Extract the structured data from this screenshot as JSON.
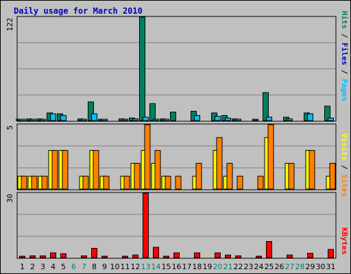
{
  "title": "Daily usage for March 2010",
  "colors": {
    "hits": "#008060",
    "files": "#00c0ff",
    "pages": "#00c0ff",
    "visits": "#ffff00",
    "sites": "#ff8000",
    "kbytes": "#ff0000",
    "weekday": "#000000",
    "weekend": "#00806b",
    "background": "#c0c0c0",
    "title": "#0000c0"
  },
  "side_labels": {
    "top": [
      {
        "text": "Hits",
        "color": "#008060"
      },
      {
        "text": " / ",
        "color": "#000000"
      },
      {
        "text": "Files",
        "color": "#0000c0"
      },
      {
        "text": " / ",
        "color": "#000000"
      },
      {
        "text": "Pages",
        "color": "#00c0ff"
      }
    ],
    "middle": [
      {
        "text": "Visits",
        "color": "#ffff00"
      },
      {
        "text": " / ",
        "color": "#000000"
      },
      {
        "text": "Sites",
        "color": "#ff8000"
      }
    ],
    "bottom": [
      {
        "text": "KBytes",
        "color": "#ff0000"
      }
    ]
  },
  "chart_data": [
    {
      "type": "bar",
      "panel": "hits-files-pages",
      "ymax_label": "122",
      "ylim": [
        0,
        122
      ],
      "categories": [
        "1",
        "2",
        "3",
        "4",
        "5",
        "6",
        "7",
        "8",
        "9",
        "10",
        "11",
        "12",
        "13",
        "14",
        "15",
        "16",
        "17",
        "18",
        "19",
        "20",
        "21",
        "22",
        "23",
        "24",
        "25",
        "26",
        "27",
        "28",
        "29",
        "30",
        "31"
      ],
      "series": [
        {
          "name": "Hits",
          "color": "#008060",
          "values": [
            1,
            2,
            2,
            9,
            8,
            0,
            2,
            22,
            1,
            0,
            2,
            3,
            122,
            20,
            2,
            10,
            0,
            11,
            0,
            9,
            6,
            2,
            0,
            1,
            33,
            0,
            4,
            0,
            9,
            0,
            17
          ]
        },
        {
          "name": "Files",
          "color": "#00c0ff",
          "values": [
            1,
            1,
            1,
            8,
            6,
            0,
            1,
            8,
            1,
            0,
            1,
            2,
            4,
            1,
            1,
            0,
            0,
            6,
            0,
            5,
            3,
            1,
            0,
            0,
            4,
            0,
            2,
            0,
            8,
            0,
            3
          ]
        },
        {
          "name": "Pages",
          "color": "#00c0ff",
          "values": [
            0,
            0,
            0,
            0,
            0,
            0,
            0,
            0,
            0,
            0,
            0,
            0,
            0,
            0,
            0,
            0,
            0,
            0,
            0,
            0,
            0,
            0,
            0,
            0,
            0,
            0,
            0,
            0,
            0,
            0,
            0
          ]
        }
      ]
    },
    {
      "type": "bar",
      "panel": "visits-sites",
      "ymax_label": "5",
      "ylim": [
        0,
        5
      ],
      "categories": [
        "1",
        "2",
        "3",
        "4",
        "5",
        "6",
        "7",
        "8",
        "9",
        "10",
        "11",
        "12",
        "13",
        "14",
        "15",
        "16",
        "17",
        "18",
        "19",
        "20",
        "21",
        "22",
        "23",
        "24",
        "25",
        "26",
        "27",
        "28",
        "29",
        "30",
        "31"
      ],
      "series": [
        {
          "name": "Visits",
          "color": "#ffff00",
          "values": [
            1,
            1,
            1,
            3,
            3,
            0,
            1,
            3,
            1,
            0,
            1,
            2,
            3,
            2,
            1,
            0,
            0,
            1,
            0,
            3,
            1,
            0,
            0,
            0,
            4,
            0,
            2,
            0,
            3,
            0,
            1
          ]
        },
        {
          "name": "Sites",
          "color": "#ff8000",
          "values": [
            1,
            1,
            1,
            3,
            3,
            0,
            1,
            3,
            1,
            0,
            1,
            2,
            5,
            3,
            1,
            1,
            0,
            2,
            0,
            4,
            2,
            1,
            0,
            1,
            5,
            0,
            2,
            0,
            3,
            0,
            2
          ]
        }
      ]
    },
    {
      "type": "bar",
      "panel": "kbytes",
      "ymax_label": "30",
      "ylim": [
        0,
        30
      ],
      "categories": [
        "1",
        "2",
        "3",
        "4",
        "5",
        "6",
        "7",
        "8",
        "9",
        "10",
        "11",
        "12",
        "13",
        "14",
        "15",
        "16",
        "17",
        "18",
        "19",
        "20",
        "21",
        "22",
        "23",
        "24",
        "25",
        "26",
        "27",
        "28",
        "29",
        "30",
        "31"
      ],
      "series": [
        {
          "name": "KBytes",
          "color": "#ff0000",
          "values": [
            0.3,
            0.8,
            0.8,
            2.2,
            1.8,
            0,
            0.8,
            4.3,
            0.4,
            0,
            0.4,
            1.2,
            30,
            4.8,
            0.4,
            2.2,
            0,
            2.2,
            0,
            2.2,
            1.2,
            0.8,
            0,
            0.4,
            7.5,
            0,
            1.2,
            0,
            2,
            0,
            3.8
          ]
        }
      ]
    }
  ],
  "x_labels": [
    {
      "text": "1",
      "weekend": false
    },
    {
      "text": "2",
      "weekend": false
    },
    {
      "text": "3",
      "weekend": false
    },
    {
      "text": "4",
      "weekend": false
    },
    {
      "text": "5",
      "weekend": false
    },
    {
      "text": "6",
      "weekend": true
    },
    {
      "text": "7",
      "weekend": true
    },
    {
      "text": "8",
      "weekend": false
    },
    {
      "text": "9",
      "weekend": false
    },
    {
      "text": "10",
      "weekend": false
    },
    {
      "text": "11",
      "weekend": false
    },
    {
      "text": "12",
      "weekend": false
    },
    {
      "text": "13",
      "weekend": true
    },
    {
      "text": "14",
      "weekend": true
    },
    {
      "text": "15",
      "weekend": false
    },
    {
      "text": "16",
      "weekend": false
    },
    {
      "text": "17",
      "weekend": false
    },
    {
      "text": "18",
      "weekend": false
    },
    {
      "text": "19",
      "weekend": false
    },
    {
      "text": "20",
      "weekend": true
    },
    {
      "text": "21",
      "weekend": true
    },
    {
      "text": "22",
      "weekend": false
    },
    {
      "text": "23",
      "weekend": false
    },
    {
      "text": "24",
      "weekend": false
    },
    {
      "text": "25",
      "weekend": false
    },
    {
      "text": "26",
      "weekend": false
    },
    {
      "text": "27",
      "weekend": true
    },
    {
      "text": "28",
      "weekend": true
    },
    {
      "text": "29",
      "weekend": false
    },
    {
      "text": "30",
      "weekend": false
    },
    {
      "text": "31",
      "weekend": false
    }
  ]
}
